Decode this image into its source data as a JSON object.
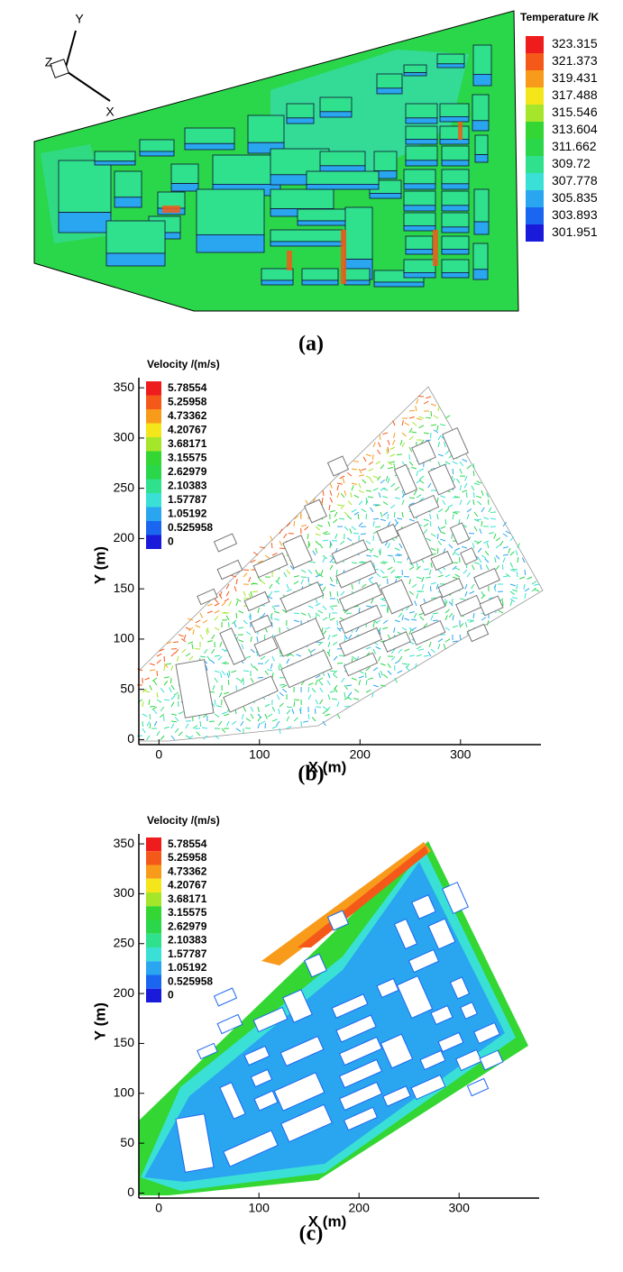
{
  "chart_data": [
    {
      "type": "contour",
      "colorbar_title": "Temperature /K",
      "levels": [
        323.315,
        321.373,
        319.431,
        317.488,
        315.546,
        313.604,
        311.662,
        309.72,
        307.778,
        305.835,
        303.893,
        301.951
      ],
      "colors": [
        "#ee1c1c",
        "#f5591a",
        "#f99b1a",
        "#f5e61b",
        "#a6e62a",
        "#33d633",
        "#2ad64a",
        "#2fe08c",
        "#3ae0d6",
        "#2aa6f0",
        "#1a66f0",
        "#1a1adb"
      ],
      "axis_triad": [
        "X",
        "Y",
        "Z"
      ],
      "caption": "(a)"
    },
    {
      "type": "vector",
      "colorbar_title": "Velocity /(m/s)",
      "levels": [
        5.78554,
        5.25958,
        4.73362,
        4.20767,
        3.68171,
        3.15575,
        2.62979,
        2.10383,
        1.57787,
        1.05192,
        0.525958,
        0
      ],
      "colors": [
        "#ee1c1c",
        "#f5591a",
        "#f99b1a",
        "#f5e61b",
        "#a6e62a",
        "#33d633",
        "#2ad64a",
        "#2fe08c",
        "#3ae0d6",
        "#2aa6f0",
        "#1a66f0",
        "#1a1adb"
      ],
      "xlabel": "X (m)",
      "ylabel": "Y (m)",
      "xlim": [
        -20,
        380
      ],
      "ylim": [
        -5,
        360
      ],
      "xticks": [
        0,
        100,
        200,
        300
      ],
      "yticks": [
        0,
        50,
        100,
        150,
        200,
        250,
        300,
        350
      ],
      "caption": "(b)"
    },
    {
      "type": "contour",
      "colorbar_title": "Velocity /(m/s)",
      "levels": [
        5.78554,
        5.25958,
        4.73362,
        4.20767,
        3.68171,
        3.15575,
        2.62979,
        2.10383,
        1.57787,
        1.05192,
        0.525958,
        0
      ],
      "colors": [
        "#ee1c1c",
        "#f5591a",
        "#f99b1a",
        "#f5e61b",
        "#a6e62a",
        "#33d633",
        "#2ad64a",
        "#2fe08c",
        "#3ae0d6",
        "#2aa6f0",
        "#1a66f0",
        "#1a1adb"
      ],
      "xlabel": "X (m)",
      "ylabel": "Y (m)",
      "xlim": [
        -20,
        380
      ],
      "ylim": [
        -5,
        360
      ],
      "xticks": [
        0,
        100,
        200,
        300
      ],
      "yticks": [
        0,
        50,
        100,
        150,
        200,
        250,
        300,
        350
      ],
      "caption": "(c)"
    }
  ]
}
